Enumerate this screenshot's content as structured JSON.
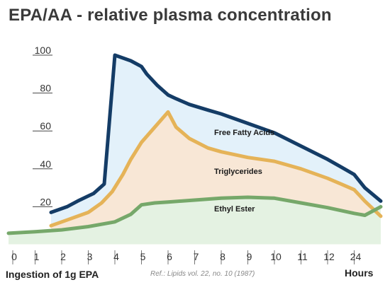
{
  "title": "EPA/AA - relative plasma concentration",
  "x_caption": "Ingestion of 1g EPA",
  "x_unit": "Hours",
  "reference": "Ref.: Lipids vol. 22, no. 10 (1987)",
  "chart_data": {
    "type": "area",
    "x_ticks": [
      "0",
      "1",
      "2",
      "3",
      "4",
      "5",
      "6",
      "7",
      "8",
      "9",
      "10",
      "11",
      "12",
      "24"
    ],
    "y_ticks": [
      20,
      40,
      60,
      80,
      100
    ],
    "ylim": [
      0,
      100
    ],
    "grid": false,
    "series": [
      {
        "name": "Free Fatty Acids",
        "color": "#143c66",
        "fill": "#e3f1fa",
        "x": [
          1.6,
          2.2,
          2.6,
          3.2,
          3.6,
          4.0,
          4.6,
          5.0,
          5.2,
          5.6,
          6.0,
          6.3,
          6.8,
          7.5,
          8.0,
          9.0,
          10.0,
          11.0,
          12.0,
          12.5,
          13.0,
          13.4,
          14.0
        ],
        "y": [
          17,
          20,
          23,
          27,
          32,
          100,
          97,
          94,
          90,
          84,
          79,
          77,
          74,
          71,
          69,
          64,
          59,
          52,
          45,
          41,
          37,
          30,
          23
        ]
      },
      {
        "name": "Triglycerides",
        "color": "#e5b358",
        "fill": "#f8e7d6",
        "x": [
          1.6,
          2.2,
          3.0,
          3.5,
          3.9,
          4.3,
          4.6,
          5.0,
          5.5,
          6.0,
          6.3,
          6.8,
          7.5,
          8.0,
          9.0,
          10.0,
          11.0,
          12.0,
          12.5,
          13.0,
          13.4,
          14.0
        ],
        "y": [
          10,
          13,
          17,
          22,
          28,
          37,
          45,
          54,
          62,
          70,
          62,
          56,
          51,
          49,
          46,
          44,
          40,
          35,
          32,
          29,
          23,
          15
        ]
      },
      {
        "name": "Ethyl Ester",
        "color": "#76a86a",
        "fill": "#e4f2e2",
        "x": [
          0.0,
          1.0,
          2.0,
          3.0,
          4.0,
          4.6,
          5.0,
          5.5,
          6.0,
          7.0,
          8.0,
          9.0,
          10.0,
          11.0,
          12.0,
          13.0,
          13.4,
          14.0
        ],
        "y": [
          6,
          6.8,
          7.8,
          9.5,
          12,
          16,
          21,
          22,
          22.5,
          23.5,
          24.5,
          25,
          24.5,
          22,
          19.5,
          16.5,
          15.5,
          20
        ]
      }
    ]
  }
}
